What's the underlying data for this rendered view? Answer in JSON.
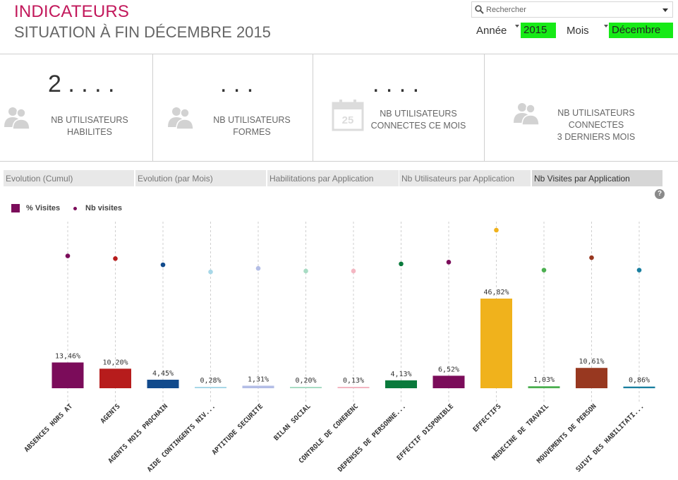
{
  "header": {
    "title": "INDICATEURS",
    "subtitle": "SITUATION À FIN DÉCEMBRE 2015"
  },
  "search": {
    "placeholder": "Rechercher"
  },
  "filters": {
    "year_label": "Année",
    "year_value": "2015",
    "month_label": "Mois",
    "month_value": "Décembre"
  },
  "kpis": [
    {
      "value": "2 . . . .",
      "label_lines": [
        "NB UTILISATEURS HABILITES"
      ]
    },
    {
      "value": ". . .",
      "label_lines": [
        "NB UTILISATEURS FORMES"
      ]
    },
    {
      "value": ". . . .",
      "label_lines": [
        "NB UTILISATEURS",
        "CONNECTES CE MOIS"
      ],
      "calendar_day": "25"
    },
    {
      "value": "",
      "label_lines": [
        "NB UTILISATEURS",
        "CONNECTES",
        "3 DERNIERS MOIS"
      ]
    }
  ],
  "tabs": [
    {
      "label": "Evolution (Cumul)",
      "active": false
    },
    {
      "label": "Evolution (par Mois)",
      "active": false
    },
    {
      "label": "Habilitations par Application",
      "active": false
    },
    {
      "label": "Nb Utilisateurs par Application",
      "active": false
    },
    {
      "label": "Nb Visites par Application",
      "active": true
    }
  ],
  "help_label": "?",
  "legend": {
    "bar_label": "% Visites",
    "dot_label": "Nb visites"
  },
  "chart_data": {
    "type": "bar",
    "title": "",
    "xlabel": "",
    "ylabel": "",
    "ylim": [
      0,
      60
    ],
    "categories": [
      "ABSENCES HORS AT",
      "AGENTS",
      "AGENTS MOIS PROCHAIN",
      "AIDE CONTINGENTS NIV...",
      "APTITUDE SECURITE",
      "BILAN SOCIAL",
      "CONTROLE DE COHERENC",
      "DEPENSES DE PERSONNE...",
      "EFFECTIF DISPONIBLE",
      "EFFECTIFS",
      "MEDECINE DE TRAVAIL",
      "MOUVEMENTS DE PERSON",
      "SUIVI DES HABILITATI..."
    ],
    "series": [
      {
        "name": "% Visites",
        "values": [
          13.46,
          10.2,
          4.45,
          0.28,
          1.31,
          0.2,
          0.13,
          4.13,
          6.52,
          46.82,
          1.03,
          10.61,
          0.86
        ],
        "labels": [
          "13,46%",
          "10,20%",
          "4,45%",
          "0,28%",
          "1,31%",
          "0,20%",
          "0,13%",
          "4,13%",
          "6,52%",
          "46,82%",
          "1,03%",
          "10,61%",
          "0,86%"
        ]
      }
    ],
    "dot_series": {
      "name": "Nb visites",
      "note": "values not labeled; relative level only (0-100)",
      "levels": [
        71,
        68,
        61,
        53,
        57,
        54,
        54,
        62,
        64,
        100,
        55,
        69,
        55
      ]
    },
    "colors": [
      "#7b0c5a",
      "#b71c1c",
      "#114a8c",
      "#a8d8e8",
      "#b3bde6",
      "#a8dcc4",
      "#f4b6c2",
      "#0a7a3c",
      "#7b0c5a",
      "#f0b21c",
      "#4caf50",
      "#983820",
      "#1a7fa0"
    ]
  }
}
